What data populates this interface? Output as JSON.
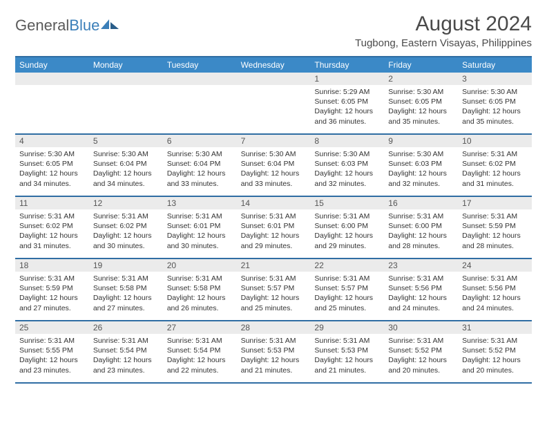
{
  "logo": {
    "text_gray": "General",
    "text_blue": "Blue"
  },
  "title": "August 2024",
  "location": "Tugbong, Eastern Visayas, Philippines",
  "colors": {
    "header_bg": "#3b89c7",
    "rule": "#2f6da3",
    "daynum_bg": "#ebebeb",
    "text": "#333333",
    "logo_gray": "#5a5a5a",
    "logo_blue": "#3b7fb9"
  },
  "day_names": [
    "Sunday",
    "Monday",
    "Tuesday",
    "Wednesday",
    "Thursday",
    "Friday",
    "Saturday"
  ],
  "weeks": [
    [
      {
        "n": "",
        "sr": "",
        "ss": "",
        "dl": ""
      },
      {
        "n": "",
        "sr": "",
        "ss": "",
        "dl": ""
      },
      {
        "n": "",
        "sr": "",
        "ss": "",
        "dl": ""
      },
      {
        "n": "",
        "sr": "",
        "ss": "",
        "dl": ""
      },
      {
        "n": "1",
        "sr": "5:29 AM",
        "ss": "6:05 PM",
        "dl": "12 hours and 36 minutes."
      },
      {
        "n": "2",
        "sr": "5:30 AM",
        "ss": "6:05 PM",
        "dl": "12 hours and 35 minutes."
      },
      {
        "n": "3",
        "sr": "5:30 AM",
        "ss": "6:05 PM",
        "dl": "12 hours and 35 minutes."
      }
    ],
    [
      {
        "n": "4",
        "sr": "5:30 AM",
        "ss": "6:05 PM",
        "dl": "12 hours and 34 minutes."
      },
      {
        "n": "5",
        "sr": "5:30 AM",
        "ss": "6:04 PM",
        "dl": "12 hours and 34 minutes."
      },
      {
        "n": "6",
        "sr": "5:30 AM",
        "ss": "6:04 PM",
        "dl": "12 hours and 33 minutes."
      },
      {
        "n": "7",
        "sr": "5:30 AM",
        "ss": "6:04 PM",
        "dl": "12 hours and 33 minutes."
      },
      {
        "n": "8",
        "sr": "5:30 AM",
        "ss": "6:03 PM",
        "dl": "12 hours and 32 minutes."
      },
      {
        "n": "9",
        "sr": "5:30 AM",
        "ss": "6:03 PM",
        "dl": "12 hours and 32 minutes."
      },
      {
        "n": "10",
        "sr": "5:31 AM",
        "ss": "6:02 PM",
        "dl": "12 hours and 31 minutes."
      }
    ],
    [
      {
        "n": "11",
        "sr": "5:31 AM",
        "ss": "6:02 PM",
        "dl": "12 hours and 31 minutes."
      },
      {
        "n": "12",
        "sr": "5:31 AM",
        "ss": "6:02 PM",
        "dl": "12 hours and 30 minutes."
      },
      {
        "n": "13",
        "sr": "5:31 AM",
        "ss": "6:01 PM",
        "dl": "12 hours and 30 minutes."
      },
      {
        "n": "14",
        "sr": "5:31 AM",
        "ss": "6:01 PM",
        "dl": "12 hours and 29 minutes."
      },
      {
        "n": "15",
        "sr": "5:31 AM",
        "ss": "6:00 PM",
        "dl": "12 hours and 29 minutes."
      },
      {
        "n": "16",
        "sr": "5:31 AM",
        "ss": "6:00 PM",
        "dl": "12 hours and 28 minutes."
      },
      {
        "n": "17",
        "sr": "5:31 AM",
        "ss": "5:59 PM",
        "dl": "12 hours and 28 minutes."
      }
    ],
    [
      {
        "n": "18",
        "sr": "5:31 AM",
        "ss": "5:59 PM",
        "dl": "12 hours and 27 minutes."
      },
      {
        "n": "19",
        "sr": "5:31 AM",
        "ss": "5:58 PM",
        "dl": "12 hours and 27 minutes."
      },
      {
        "n": "20",
        "sr": "5:31 AM",
        "ss": "5:58 PM",
        "dl": "12 hours and 26 minutes."
      },
      {
        "n": "21",
        "sr": "5:31 AM",
        "ss": "5:57 PM",
        "dl": "12 hours and 25 minutes."
      },
      {
        "n": "22",
        "sr": "5:31 AM",
        "ss": "5:57 PM",
        "dl": "12 hours and 25 minutes."
      },
      {
        "n": "23",
        "sr": "5:31 AM",
        "ss": "5:56 PM",
        "dl": "12 hours and 24 minutes."
      },
      {
        "n": "24",
        "sr": "5:31 AM",
        "ss": "5:56 PM",
        "dl": "12 hours and 24 minutes."
      }
    ],
    [
      {
        "n": "25",
        "sr": "5:31 AM",
        "ss": "5:55 PM",
        "dl": "12 hours and 23 minutes."
      },
      {
        "n": "26",
        "sr": "5:31 AM",
        "ss": "5:54 PM",
        "dl": "12 hours and 23 minutes."
      },
      {
        "n": "27",
        "sr": "5:31 AM",
        "ss": "5:54 PM",
        "dl": "12 hours and 22 minutes."
      },
      {
        "n": "28",
        "sr": "5:31 AM",
        "ss": "5:53 PM",
        "dl": "12 hours and 21 minutes."
      },
      {
        "n": "29",
        "sr": "5:31 AM",
        "ss": "5:53 PM",
        "dl": "12 hours and 21 minutes."
      },
      {
        "n": "30",
        "sr": "5:31 AM",
        "ss": "5:52 PM",
        "dl": "12 hours and 20 minutes."
      },
      {
        "n": "31",
        "sr": "5:31 AM",
        "ss": "5:52 PM",
        "dl": "12 hours and 20 minutes."
      }
    ]
  ],
  "labels": {
    "sunrise_prefix": "Sunrise: ",
    "sunset_prefix": "Sunset: ",
    "daylight_prefix": "Daylight: "
  }
}
